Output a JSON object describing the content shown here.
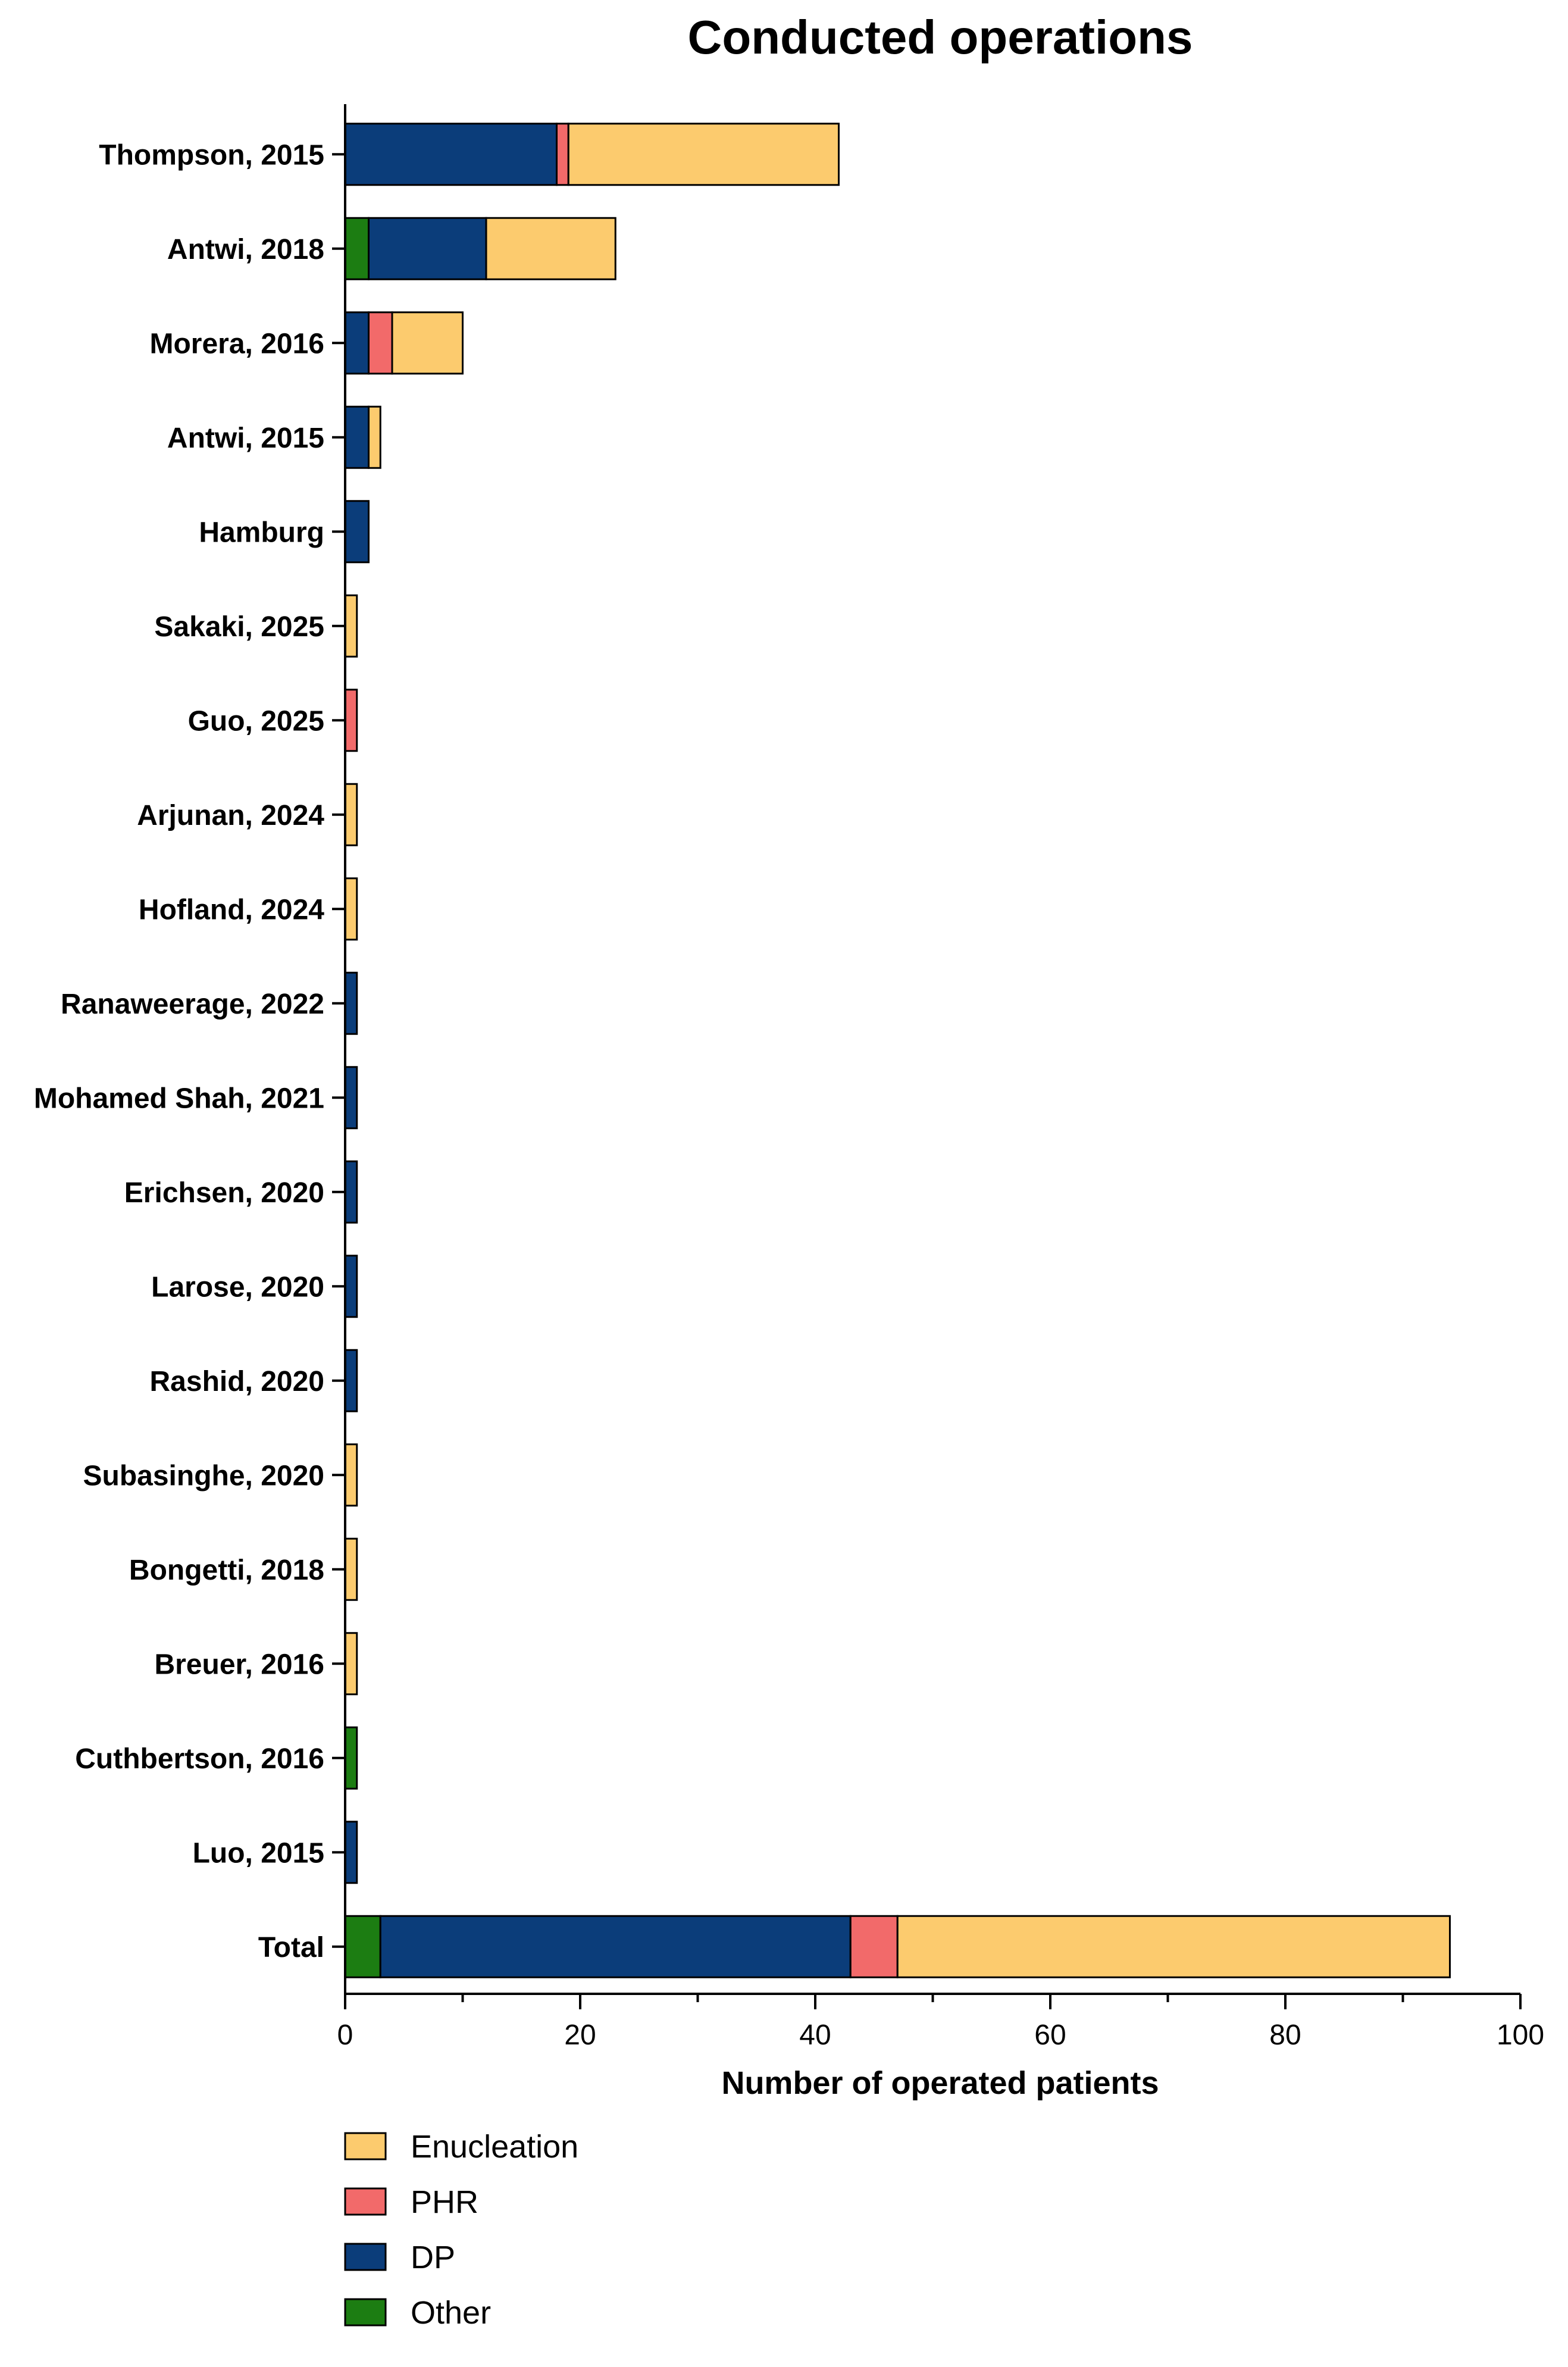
{
  "chart_data": {
    "type": "bar",
    "orientation": "horizontal",
    "stacked": true,
    "title": "Conducted operations",
    "xlabel": "Number of operated patients",
    "ylabel": "",
    "xlim": [
      0,
      100
    ],
    "xticks": [
      "0",
      "20",
      "40",
      "60",
      "80",
      "100"
    ],
    "categories": [
      "Thompson, 2015",
      "Antwi, 2018",
      "Morera, 2016",
      "Antwi, 2015",
      "Hamburg",
      "Sakaki, 2025",
      "Guo, 2025",
      "Arjunan, 2024",
      "Hofland, 2024",
      "Ranaweerage, 2022",
      "Mohamed Shah, 2021",
      "Erichsen, 2020",
      "Larose, 2020",
      "Rashid, 2020",
      "Subasinghe, 2020",
      "Bongetti, 2018",
      "Breuer, 2016",
      "Cuthbertson, 2016",
      "Luo, 2015",
      "Total"
    ],
    "series": [
      {
        "name": "Other",
        "color": "#1c7d12",
        "values": [
          0,
          2,
          0,
          0,
          0,
          0,
          0,
          0,
          0,
          0,
          0,
          0,
          0,
          0,
          0,
          0,
          0,
          1,
          0,
          3
        ]
      },
      {
        "name": "DP",
        "color": "#0b3d7a",
        "values": [
          18,
          10,
          2,
          2,
          2,
          0,
          0,
          0,
          0,
          1,
          1,
          1,
          1,
          1,
          0,
          0,
          0,
          0,
          1,
          40
        ]
      },
      {
        "name": "PHR",
        "color": "#f26a6a",
        "values": [
          1,
          0,
          2,
          0,
          0,
          0,
          1,
          0,
          0,
          0,
          0,
          0,
          0,
          0,
          0,
          0,
          0,
          0,
          0,
          4
        ]
      },
      {
        "name": "Enucleation",
        "color": "#fccb6e",
        "values": [
          23,
          11,
          6,
          1,
          0,
          1,
          0,
          1,
          1,
          0,
          0,
          0,
          0,
          0,
          1,
          1,
          1,
          0,
          0,
          47
        ]
      }
    ],
    "legend": {
      "placement": "bottom-left",
      "order": [
        "Enucleation",
        "PHR",
        "DP",
        "Other"
      ]
    },
    "grid": false
  }
}
